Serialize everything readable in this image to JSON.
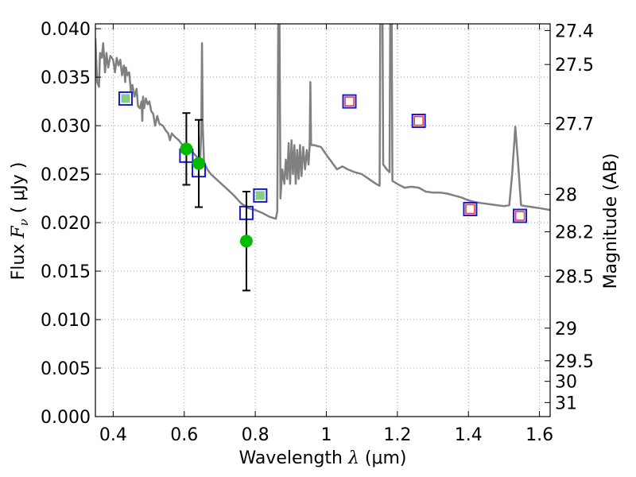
{
  "chart_data": {
    "type": "scatter",
    "xlabel": {
      "prefix": "Wavelength ",
      "symbol": "λ",
      "unit": " (μm)"
    },
    "ylabel": {
      "prefix": "Flux ",
      "symbol": "F",
      "subscript": "ν",
      "unit": " ( μJy )"
    },
    "y2label": "Magnitude (AB)",
    "xlim": [
      0.35,
      1.63
    ],
    "ylim": [
      0.0,
      0.0405
    ],
    "grid": true,
    "x_ticks": [
      {
        "value": 0.4,
        "label": "0.4"
      },
      {
        "value": 0.6,
        "label": "0.6"
      },
      {
        "value": 0.8,
        "label": "0.8"
      },
      {
        "value": 1.0,
        "label": "1"
      },
      {
        "value": 1.2,
        "label": "1.2"
      },
      {
        "value": 1.4,
        "label": "1.4"
      },
      {
        "value": 1.6,
        "label": "1.6"
      }
    ],
    "y_ticks": [
      {
        "value": 0.0,
        "label": "0.000"
      },
      {
        "value": 0.005,
        "label": "0.005"
      },
      {
        "value": 0.01,
        "label": "0.010"
      },
      {
        "value": 0.015,
        "label": "0.015"
      },
      {
        "value": 0.02,
        "label": "0.020"
      },
      {
        "value": 0.025,
        "label": "0.025"
      },
      {
        "value": 0.03,
        "label": "0.030"
      },
      {
        "value": 0.035,
        "label": "0.035"
      },
      {
        "value": 0.04,
        "label": "0.040"
      }
    ],
    "y2_ticks": [
      {
        "value": 27.4,
        "label": "27.4"
      },
      {
        "value": 27.5,
        "label": "27.5"
      },
      {
        "value": 27.7,
        "label": "27.7"
      },
      {
        "value": 28.0,
        "label": "28"
      },
      {
        "value": 28.2,
        "label": "28.2"
      },
      {
        "value": 28.5,
        "label": "28.5"
      },
      {
        "value": 29.0,
        "label": "29"
      },
      {
        "value": 29.5,
        "label": "29.5"
      },
      {
        "value": 30.0,
        "label": "30"
      },
      {
        "value": 31.0,
        "label": "31"
      }
    ],
    "colors": {
      "model": "#808080",
      "observed": "#00bb00",
      "model_box": "#1a1acc",
      "fill_green": "#88cc88",
      "fill_red": "#ee3333",
      "errorbar": "#000000",
      "grid": "#888888"
    },
    "model_spectrum": [
      [
        0.35,
        0.039
      ],
      [
        0.355,
        0.0345
      ],
      [
        0.36,
        0.034
      ],
      [
        0.363,
        0.0375
      ],
      [
        0.368,
        0.037
      ],
      [
        0.372,
        0.0385
      ],
      [
        0.377,
        0.0355
      ],
      [
        0.381,
        0.0375
      ],
      [
        0.386,
        0.036
      ],
      [
        0.392,
        0.0372
      ],
      [
        0.4,
        0.0368
      ],
      [
        0.405,
        0.0355
      ],
      [
        0.41,
        0.037
      ],
      [
        0.415,
        0.0362
      ],
      [
        0.42,
        0.0368
      ],
      [
        0.425,
        0.0352
      ],
      [
        0.43,
        0.0362
      ],
      [
        0.434,
        0.0345
      ],
      [
        0.436,
        0.036
      ],
      [
        0.44,
        0.0352
      ],
      [
        0.445,
        0.0355
      ],
      [
        0.45,
        0.0335
      ],
      [
        0.454,
        0.0342
      ],
      [
        0.46,
        0.033
      ],
      [
        0.466,
        0.0338
      ],
      [
        0.47,
        0.032
      ],
      [
        0.475,
        0.0318
      ],
      [
        0.48,
        0.0325
      ],
      [
        0.482,
        0.0305
      ],
      [
        0.484,
        0.033
      ],
      [
        0.487,
        0.0318
      ],
      [
        0.492,
        0.0328
      ],
      [
        0.497,
        0.0322
      ],
      [
        0.502,
        0.0325
      ],
      [
        0.507,
        0.0315
      ],
      [
        0.513,
        0.0312
      ],
      [
        0.518,
        0.03
      ],
      [
        0.524,
        0.031
      ],
      [
        0.53,
        0.0302
      ],
      [
        0.54,
        0.03
      ],
      [
        0.548,
        0.0295
      ],
      [
        0.555,
        0.0292
      ],
      [
        0.56,
        0.0285
      ],
      [
        0.565,
        0.0292
      ],
      [
        0.575,
        0.0288
      ],
      [
        0.585,
        0.0285
      ],
      [
        0.595,
        0.028
      ],
      [
        0.605,
        0.0278
      ],
      [
        0.615,
        0.0275
      ],
      [
        0.625,
        0.0272
      ],
      [
        0.635,
        0.0268
      ],
      [
        0.642,
        0.0262
      ],
      [
        0.645,
        0.0265
      ],
      [
        0.648,
        0.0295
      ],
      [
        0.65,
        0.0385
      ],
      [
        0.652,
        0.03
      ],
      [
        0.656,
        0.0262
      ],
      [
        0.665,
        0.0255
      ],
      [
        0.675,
        0.025
      ],
      [
        0.69,
        0.0245
      ],
      [
        0.705,
        0.024
      ],
      [
        0.72,
        0.0235
      ],
      [
        0.74,
        0.0228
      ],
      [
        0.76,
        0.022
      ],
      [
        0.78,
        0.0215
      ],
      [
        0.8,
        0.0213
      ],
      [
        0.82,
        0.021
      ],
      [
        0.84,
        0.0206
      ],
      [
        0.858,
        0.0204
      ],
      [
        0.862,
        0.0212
      ],
      [
        0.865,
        0.042
      ],
      [
        0.868,
        0.042
      ],
      [
        0.871,
        0.0225
      ],
      [
        0.876,
        0.0255
      ],
      [
        0.882,
        0.024
      ],
      [
        0.886,
        0.0265
      ],
      [
        0.89,
        0.0245
      ],
      [
        0.894,
        0.0282
      ],
      [
        0.898,
        0.024
      ],
      [
        0.902,
        0.0285
      ],
      [
        0.906,
        0.025
      ],
      [
        0.91,
        0.028
      ],
      [
        0.914,
        0.024
      ],
      [
        0.918,
        0.0275
      ],
      [
        0.922,
        0.0245
      ],
      [
        0.926,
        0.028
      ],
      [
        0.93,
        0.0248
      ],
      [
        0.935,
        0.0278
      ],
      [
        0.94,
        0.0255
      ],
      [
        0.945,
        0.0275
      ],
      [
        0.95,
        0.026
      ],
      [
        0.953,
        0.028
      ],
      [
        0.955,
        0.0345
      ],
      [
        0.957,
        0.028
      ],
      [
        0.965,
        0.028
      ],
      [
        0.985,
        0.0278
      ],
      [
        1.0,
        0.027
      ],
      [
        1.02,
        0.026
      ],
      [
        1.03,
        0.0255
      ],
      [
        1.045,
        0.0258
      ],
      [
        1.06,
        0.0255
      ],
      [
        1.08,
        0.0252
      ],
      [
        1.1,
        0.025
      ],
      [
        1.12,
        0.0245
      ],
      [
        1.14,
        0.024
      ],
      [
        1.15,
        0.0238
      ],
      [
        1.152,
        0.042
      ],
      [
        1.158,
        0.042
      ],
      [
        1.16,
        0.026
      ],
      [
        1.17,
        0.0255
      ],
      [
        1.178,
        0.0252
      ],
      [
        1.18,
        0.042
      ],
      [
        1.184,
        0.042
      ],
      [
        1.186,
        0.0243
      ],
      [
        1.2,
        0.024
      ],
      [
        1.22,
        0.0236
      ],
      [
        1.24,
        0.0237
      ],
      [
        1.26,
        0.0236
      ],
      [
        1.28,
        0.0232
      ],
      [
        1.3,
        0.0231
      ],
      [
        1.32,
        0.0231
      ],
      [
        1.34,
        0.023
      ],
      [
        1.36,
        0.0228
      ],
      [
        1.38,
        0.0226
      ],
      [
        1.4,
        0.0223
      ],
      [
        1.42,
        0.0221
      ],
      [
        1.44,
        0.022
      ],
      [
        1.46,
        0.0219
      ],
      [
        1.48,
        0.0218
      ],
      [
        1.5,
        0.0217
      ],
      [
        1.515,
        0.0218
      ],
      [
        1.523,
        0.025
      ],
      [
        1.532,
        0.0299
      ],
      [
        1.54,
        0.026
      ],
      [
        1.548,
        0.0218
      ],
      [
        1.56,
        0.0217
      ],
      [
        1.58,
        0.0216
      ],
      [
        1.6,
        0.0215
      ],
      [
        1.63,
        0.0213
      ]
    ],
    "observed": [
      {
        "x": 0.606,
        "y": 0.0276,
        "err": 0.0037
      },
      {
        "x": 0.641,
        "y": 0.0261,
        "err": 0.0045
      },
      {
        "x": 0.775,
        "y": 0.0181,
        "err": 0.0051
      }
    ],
    "model_boxes": [
      {
        "x": 0.435,
        "y": 0.0328,
        "fill": "green"
      },
      {
        "x": 0.606,
        "y": 0.0269,
        "fill": "none"
      },
      {
        "x": 0.641,
        "y": 0.0254,
        "fill": "none"
      },
      {
        "x": 0.775,
        "y": 0.021,
        "fill": "none"
      },
      {
        "x": 0.814,
        "y": 0.0228,
        "fill": "green"
      },
      {
        "x": 1.065,
        "y": 0.0325,
        "fill": "red"
      },
      {
        "x": 1.26,
        "y": 0.0305,
        "fill": "red"
      },
      {
        "x": 1.405,
        "y": 0.0214,
        "fill": "red"
      },
      {
        "x": 1.545,
        "y": 0.0207,
        "fill": "red"
      }
    ]
  }
}
